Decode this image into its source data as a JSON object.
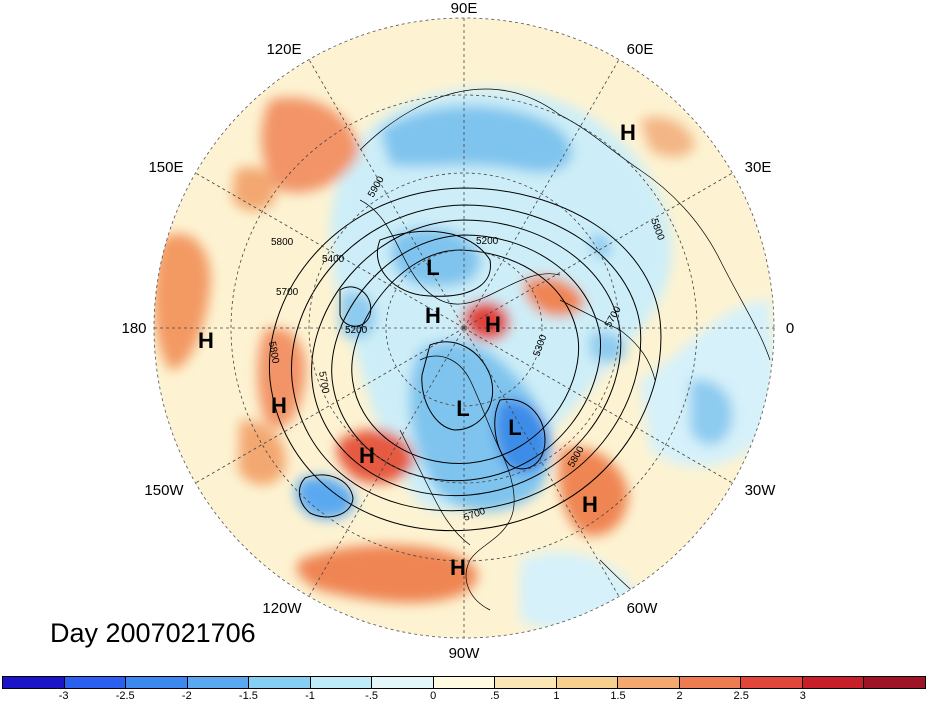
{
  "map": {
    "projection": "polar stereographic (northern hemisphere)",
    "field": "500 hPa height anomaly (shaded) with height contours",
    "longitude_labels": {
      "deg90E": "90E",
      "deg60E": "60E",
      "deg30E": "30E",
      "deg0": "0",
      "deg30W": "30W",
      "deg60W": "60W",
      "deg90W": "90W",
      "deg120W": "120W",
      "deg150W": "150W",
      "deg180": "180",
      "deg150E": "150E",
      "deg120E": "120E"
    },
    "contour_labels": {
      "c5900": "5900",
      "c5200": "5200",
      "c5400": "5400",
      "c5800a": "5800",
      "c5700a": "5700",
      "c5200b": "5200",
      "c5800b": "5800",
      "c5700b": "5700",
      "c5300": "5300",
      "c5700c": "5700",
      "c5800c": "5800",
      "c5700d": "5700",
      "c5800d": "5800"
    },
    "centers": [
      {
        "label": "H"
      },
      {
        "label": "L"
      },
      {
        "label": "H"
      },
      {
        "label": "H"
      },
      {
        "label": "L"
      },
      {
        "label": "L"
      },
      {
        "label": "H"
      },
      {
        "label": "H"
      },
      {
        "label": "H"
      },
      {
        "label": "H"
      },
      {
        "label": "H"
      }
    ],
    "colors": {
      "strong_negative": "#1e3fd8",
      "negative": "#5aa9f0",
      "weak_negative": "#bfeaf7",
      "neutral": "#fdf6d8",
      "weak_positive": "#f9d49b",
      "positive": "#ef8552",
      "strong_positive": "#de3b34"
    }
  },
  "date_label": "Day 2007021706",
  "colorbar": {
    "colors": [
      "#1b14c9",
      "#2a5ff0",
      "#3d88ef",
      "#5aa9f0",
      "#86cff2",
      "#bfeaf7",
      "#e3f7fb",
      "#fffbe3",
      "#fbe6b6",
      "#f7cf8e",
      "#f3a771",
      "#ee7c52",
      "#e2463a",
      "#c81e2a",
      "#9e1326"
    ],
    "tick_labels": [
      "-3",
      "-2.5",
      "-2",
      "-1.5",
      "-1",
      "-.5",
      "0",
      ".5",
      "1",
      "1.5",
      "2",
      "2.5",
      "3"
    ]
  }
}
